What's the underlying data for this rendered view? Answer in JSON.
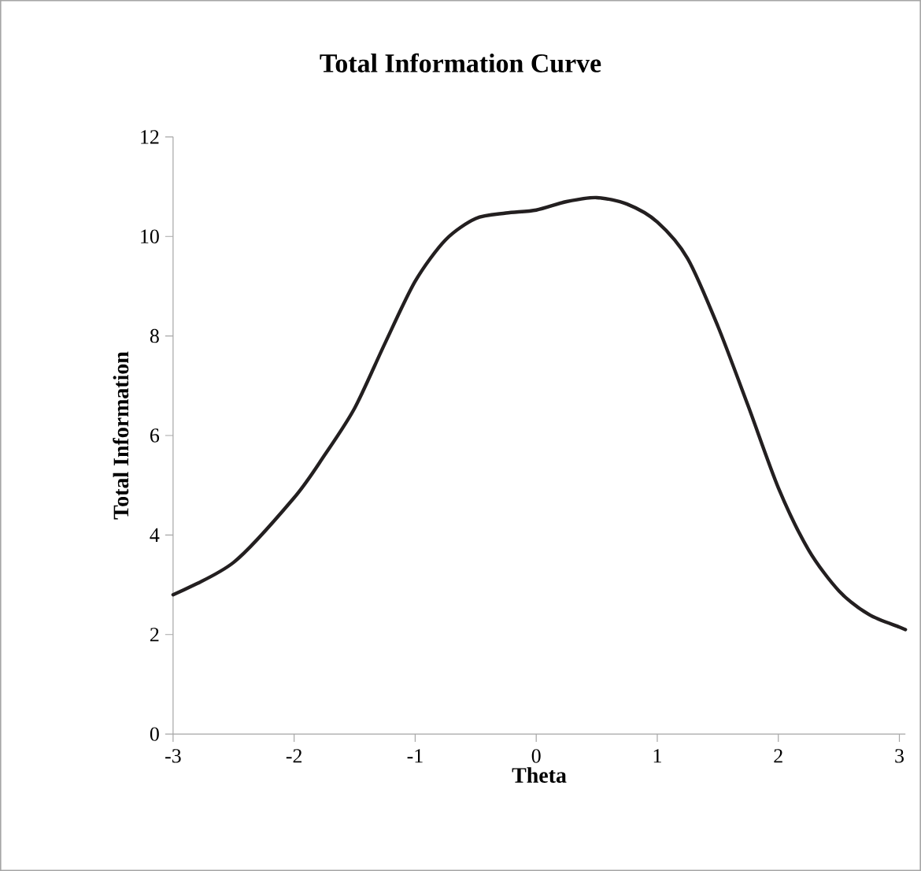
{
  "chart_data": {
    "type": "line",
    "title": "Total Information Curve",
    "xlabel": "Theta",
    "ylabel": "Total Information",
    "xlim": [
      -3,
      3.05
    ],
    "ylim": [
      0,
      12
    ],
    "xticks": [
      -3,
      -2,
      -1,
      0,
      1,
      2,
      3
    ],
    "yticks": [
      0,
      2,
      4,
      6,
      8,
      10,
      12
    ],
    "marker": "none",
    "line_style": "solid",
    "series": [
      {
        "color": "#231f20",
        "x": [
          -3,
          -2.5,
          -2,
          -1.75,
          -1.5,
          -1.25,
          -1,
          -0.75,
          -0.5,
          -0.25,
          0,
          0.25,
          0.5,
          0.75,
          1,
          1.25,
          1.5,
          1.75,
          2,
          2.25,
          2.5,
          2.75,
          3,
          3.05
        ],
        "values": [
          2.8,
          3.45,
          4.75,
          5.6,
          6.55,
          7.85,
          9.1,
          9.93,
          10.36,
          10.47,
          10.53,
          10.7,
          10.78,
          10.65,
          10.29,
          9.56,
          8.2,
          6.6,
          4.95,
          3.7,
          2.88,
          2.4,
          2.15,
          2.1
        ]
      }
    ]
  }
}
